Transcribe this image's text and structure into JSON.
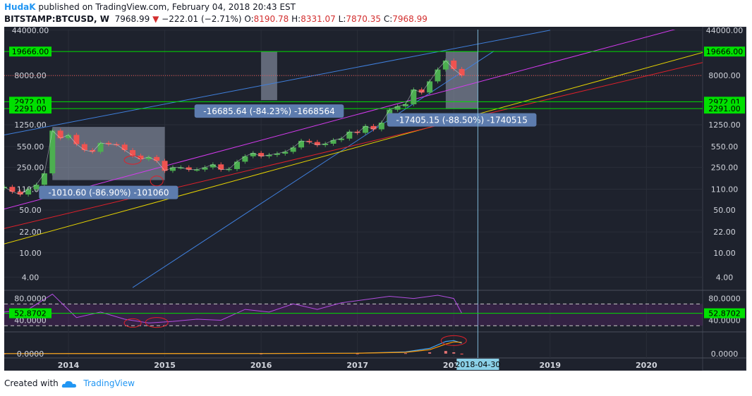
{
  "header": {
    "author": "HudaK",
    "published_text": "published on TradingView.com, February 04, 2018 20:43 EST",
    "symbol": "BITSTAMP:BTCUSD, W",
    "last": "7968.99",
    "change_arrow": "▼",
    "change": "−222.01 (−2.71%)",
    "o_label": "O:",
    "o_val": "8190.78",
    "h_label": "H:",
    "h_val": "8331.07",
    "l_label": "L:",
    "l_val": "7870.35",
    "c_label": "C:",
    "c_val": "7968.99"
  },
  "footer": {
    "created_with": "Created with",
    "brand": "TradingView",
    "logo_icon": "cloud-logo-icon"
  },
  "colors": {
    "background": "#1e222d",
    "grid": "#2a2e39",
    "up": "#4caf50",
    "down": "#ef5350",
    "green_line": "#00e000",
    "magenta": "#d63af0",
    "blue": "#3f7fdc",
    "yellow": "#e6d300",
    "red": "#e0202a",
    "rsi": "#9c27b0",
    "callout": "#5d7cae"
  },
  "chart_data": {
    "type": "line",
    "price_scale": "log",
    "ylim": [
      2.5,
      45000
    ],
    "xlim": [
      "2013-05",
      "2020-08"
    ],
    "price_axis_ticks": [
      "44000.00",
      "8000.00",
      "1250.00",
      "550.00",
      "250.00",
      "110.00",
      "50.00",
      "22.00",
      "10.00",
      "4.00"
    ],
    "time_axis_ticks": [
      "2014",
      "2015",
      "2016",
      "2017",
      "2018",
      "2019",
      "2020"
    ],
    "time_cursor_label": "2018-04-30",
    "price_series": {
      "name": "BTCUSD weekly close",
      "x": [
        "2013-05",
        "2013-06",
        "2013-07",
        "2013-08",
        "2013-09",
        "2013-10",
        "2013-11",
        "2013-12",
        "2014-01",
        "2014-02",
        "2014-03",
        "2014-04",
        "2014-05",
        "2014-06",
        "2014-07",
        "2014-08",
        "2014-09",
        "2014-10",
        "2014-11",
        "2014-12",
        "2015-01",
        "2015-02",
        "2015-03",
        "2015-04",
        "2015-05",
        "2015-06",
        "2015-07",
        "2015-08",
        "2015-09",
        "2015-10",
        "2015-11",
        "2015-12",
        "2016-01",
        "2016-02",
        "2016-03",
        "2016-04",
        "2016-05",
        "2016-06",
        "2016-07",
        "2016-08",
        "2016-09",
        "2016-10",
        "2016-11",
        "2016-12",
        "2017-01",
        "2017-02",
        "2017-03",
        "2017-04",
        "2017-05",
        "2017-06",
        "2017-07",
        "2017-08",
        "2017-09",
        "2017-10",
        "2017-11",
        "2017-12",
        "2018-01",
        "2018-02"
      ],
      "y": [
        120,
        100,
        90,
        110,
        130,
        200,
        1000,
        750,
        850,
        600,
        480,
        450,
        630,
        600,
        590,
        480,
        390,
        340,
        370,
        320,
        220,
        250,
        250,
        230,
        230,
        250,
        280,
        230,
        235,
        310,
        380,
        430,
        380,
        400,
        420,
        450,
        530,
        680,
        650,
        580,
        610,
        700,
        740,
        960,
        920,
        1190,
        1050,
        1350,
        2200,
        2500,
        2700,
        4700,
        4200,
        6400,
        10000,
        14000,
        10200,
        7968.99
      ]
    },
    "horizontal_levels": [
      {
        "value": 19666.0,
        "label": "19666.00"
      },
      {
        "value": 2972.01,
        "label": "2972.01"
      },
      {
        "value": 2291.0,
        "label": "2291.00"
      }
    ],
    "last_price_level": 7968.99,
    "trendlines": [
      {
        "color": "blue",
        "x": [
          "2013-05",
          "2019-01"
        ],
        "y": [
          850,
          44000
        ]
      },
      {
        "color": "blue",
        "x": [
          "2014-09",
          "2018-06"
        ],
        "y": [
          2.7,
          20000
        ]
      },
      {
        "color": "magenta",
        "x": [
          "2013-05",
          "2020-08"
        ],
        "y": [
          52,
          60000
        ]
      },
      {
        "color": "yellow",
        "x": [
          "2013-05",
          "2020-08"
        ],
        "y": [
          14,
          19000
        ]
      },
      {
        "color": "red",
        "x": [
          "2013-05",
          "2020-08"
        ],
        "y": [
          25,
          13000
        ]
      }
    ],
    "drawdown_boxes": [
      {
        "label": "-1010.60 (-86.90%) -101060",
        "x": [
          "2013-11",
          "2015-01"
        ],
        "y": [
          155,
          1150
        ]
      },
      {
        "label": "-16685.64 (-84.23%) -1668564",
        "x": [
          "2016-01",
          "2016-03"
        ],
        "y": [
          3150,
          19666
        ]
      },
      {
        "label": "-17405.15 (-88.50%) -1740515",
        "x": [
          "2017-12",
          "2018-04"
        ],
        "y": [
          2262,
          19666
        ]
      }
    ],
    "rsi": {
      "axis_ticks": [
        "80.0000",
        "40.0000"
      ],
      "current_label": "52.8702",
      "current": 52.8702,
      "upper_band": 70,
      "lower_band": 30,
      "ylim": [
        20,
        95
      ],
      "x": [
        "2013-05",
        "2013-08",
        "2013-11",
        "2014-02",
        "2014-05",
        "2014-08",
        "2014-11",
        "2015-02",
        "2015-05",
        "2015-08",
        "2015-11",
        "2016-02",
        "2016-05",
        "2016-08",
        "2016-11",
        "2017-02",
        "2017-05",
        "2017-08",
        "2017-11",
        "2018-01",
        "2018-02"
      ],
      "y": [
        55,
        60,
        88,
        45,
        55,
        42,
        35,
        38,
        42,
        40,
        60,
        55,
        70,
        60,
        72,
        78,
        84,
        80,
        86,
        80,
        52.87
      ]
    },
    "oscillator": {
      "axis_ticks": [
        "0.0000"
      ],
      "ylim": [
        -1,
        5
      ],
      "x": [
        "2013-05",
        "2016-01",
        "2017-01",
        "2017-07",
        "2017-10",
        "2017-12",
        "2018-01",
        "2018-02"
      ],
      "macd": [
        0,
        0.02,
        0.1,
        0.4,
        1.2,
        2.8,
        3.0,
        2.4
      ],
      "signal": [
        0,
        0.02,
        0.08,
        0.3,
        0.9,
        2.2,
        2.7,
        2.6
      ],
      "histogram": [
        0,
        0,
        0.02,
        0.1,
        0.3,
        0.6,
        0.3,
        -0.2
      ]
    }
  }
}
